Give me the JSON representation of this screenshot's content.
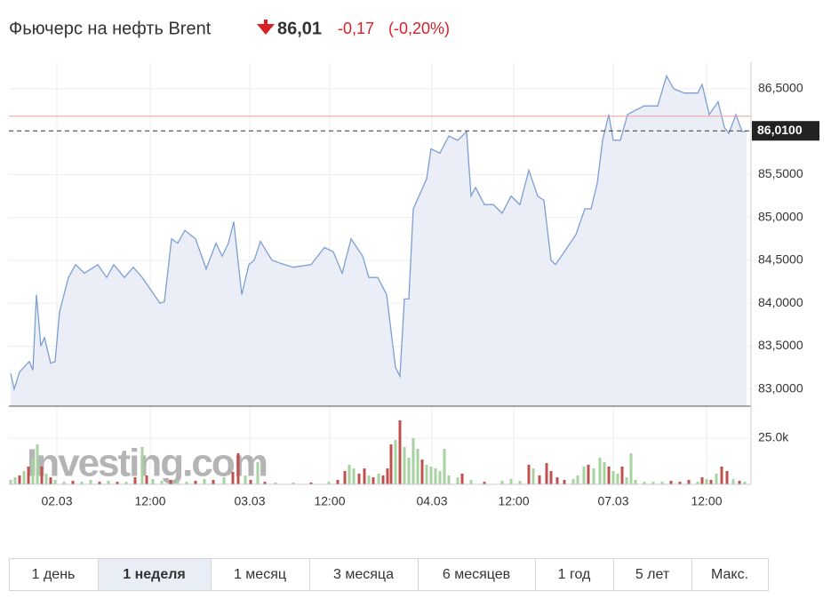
{
  "header": {
    "title": "Фьючерс на нефть Brent",
    "price": "86,01",
    "change": "-0,17",
    "change_pct": "(-0,20%)"
  },
  "chart_data": [
    {
      "type": "area",
      "color": "#7c9fd3",
      "fill": "#e9ecf6",
      "x": [
        0,
        0.4,
        1,
        2.1,
        2.5,
        2.9,
        3.4,
        3.8,
        4.5,
        5,
        5.5,
        6.5,
        7.3,
        8.3,
        9.8,
        10.8,
        11.6,
        12.8,
        13.8,
        14.8,
        16.8,
        17.3,
        18.1,
        18.8,
        19.6,
        20.8,
        22,
        23.1,
        23.8,
        24.5,
        25.1,
        26,
        26.8,
        27.4,
        28.1,
        29.4,
        30.8,
        31.8,
        33.8,
        35.3,
        36.3,
        37.3,
        38.3,
        39.6,
        40.3,
        41.3,
        42.3,
        43.3,
        43.8,
        44.3,
        44.8,
        45.3,
        46.8,
        47.3,
        48.3,
        49.3,
        50.3,
        51.3,
        51.8,
        52.3,
        53.3,
        54.3,
        55.3,
        56.3,
        57.3,
        58.3,
        59.3,
        60,
        60.8,
        61.3,
        62.3,
        63.6,
        64.6,
        65.3,
        66,
        66.6,
        67.3,
        67.8,
        68.6,
        69.4,
        70.3,
        71.3,
        72.8,
        73.8,
        74.6,
        75.8,
        77.3,
        77.8,
        78.6,
        79.6,
        80.3,
        80.8,
        81.6,
        82.3,
        82.8
      ],
      "values": [
        83.18,
        83.0,
        83.2,
        83.32,
        83.22,
        84.1,
        83.5,
        83.6,
        83.3,
        83.32,
        83.9,
        84.3,
        84.45,
        84.35,
        84.45,
        84.3,
        84.45,
        84.3,
        84.42,
        84.3,
        84.0,
        84.02,
        84.75,
        84.7,
        84.85,
        84.75,
        84.4,
        84.7,
        84.55,
        84.7,
        84.95,
        84.1,
        84.45,
        84.5,
        84.72,
        84.5,
        84.45,
        84.42,
        84.45,
        84.65,
        84.6,
        84.35,
        84.75,
        84.55,
        84.3,
        84.3,
        84.1,
        83.25,
        83.15,
        84.05,
        84.05,
        85.1,
        85.45,
        85.8,
        85.75,
        85.95,
        85.9,
        86.0,
        85.25,
        85.35,
        85.15,
        85.15,
        85.05,
        85.25,
        85.15,
        85.55,
        85.25,
        85.2,
        84.5,
        84.45,
        84.6,
        84.8,
        85.1,
        85.1,
        85.4,
        85.9,
        86.2,
        85.9,
        85.9,
        86.2,
        86.25,
        86.3,
        86.3,
        86.65,
        86.5,
        86.45,
        86.45,
        86.55,
        86.2,
        86.35,
        86.05,
        85.98,
        86.2,
        86.0,
        86.01
      ],
      "xlim": [
        -0.2,
        83.3
      ],
      "ylim": [
        82.8,
        86.81
      ],
      "xticks": [
        {
          "value": 5.2,
          "label": "02.03"
        },
        {
          "value": 15.7,
          "label": "12:00"
        },
        {
          "value": 26.9,
          "label": "03.03"
        },
        {
          "value": 35.9,
          "label": "12:00"
        },
        {
          "value": 47.4,
          "label": "04.03"
        },
        {
          "value": 56.6,
          "label": "12:00"
        },
        {
          "value": 67.8,
          "label": "07.03"
        },
        {
          "value": 78.3,
          "label": "12:00"
        }
      ],
      "yticks": [
        {
          "value": 83,
          "label": "83,0000"
        },
        {
          "value": 83.5,
          "label": "83,5000"
        },
        {
          "value": 84,
          "label": "84,0000"
        },
        {
          "value": 84.5,
          "label": "84,5000"
        },
        {
          "value": 85,
          "label": "85,0000"
        },
        {
          "value": 85.5,
          "label": "85,5000"
        },
        {
          "value": 86.5,
          "label": "86,5000"
        }
      ],
      "last_price": {
        "value": 86.01,
        "label": "86,0100"
      },
      "prev_close_line": 86.18,
      "grid": true
    },
    {
      "type": "bar",
      "watermark": "Investing.com",
      "up_color": "#a6d3a0",
      "down_color": "#c0504d",
      "x": [
        0,
        0.5,
        1,
        1.5,
        2,
        2.5,
        3,
        3.5,
        4,
        4.5,
        5,
        6,
        7,
        8,
        9,
        10,
        11,
        12,
        13,
        14,
        14.8,
        15.3,
        16,
        17,
        18,
        18.8,
        19.8,
        20.8,
        21.8,
        22.8,
        24,
        25,
        25.6,
        26.4,
        27,
        27.8,
        28.6,
        29.8,
        31.8,
        33.8,
        35.8,
        36.8,
        37.6,
        38.1,
        38.6,
        39.2,
        39.8,
        40.3,
        40.8,
        41.4,
        41.9,
        42.4,
        42.8,
        43.3,
        43.8,
        44.3,
        44.8,
        45.3,
        45.8,
        46.3,
        46.8,
        47.3,
        47.8,
        48.3,
        48.8,
        49.3,
        50.3,
        50.8,
        51.8,
        53.3,
        55.3,
        56.3,
        57.3,
        58.3,
        58.8,
        59.5,
        60.3,
        60.8,
        61.5,
        62.3,
        63.3,
        63.8,
        64.5,
        65,
        65.6,
        66.3,
        66.8,
        67.3,
        67.8,
        68.3,
        68.8,
        69.3,
        69.8,
        70.3,
        71.3,
        72.3,
        73.3,
        74.3,
        75.3,
        76.3,
        77.3,
        77.8,
        78.3,
        78.8,
        79.4,
        80,
        80.6,
        81.3,
        82,
        82.6
      ],
      "values": [
        2400,
        3800,
        4800,
        7200,
        9600,
        14400,
        21600,
        9600,
        5800,
        3800,
        2400,
        1400,
        1900,
        1400,
        2400,
        1400,
        1900,
        1400,
        1400,
        3800,
        20200,
        4800,
        2900,
        1900,
        2400,
        1900,
        1400,
        1900,
        2900,
        2400,
        3800,
        6700,
        16800,
        4800,
        2400,
        12000,
        1400,
        1000,
        1000,
        1000,
        1400,
        2400,
        7200,
        10600,
        8600,
        5800,
        8600,
        4800,
        3800,
        5800,
        4800,
        8600,
        21600,
        24000,
        34600,
        20200,
        14400,
        25000,
        19200,
        13400,
        10600,
        9600,
        8600,
        7200,
        19200,
        4800,
        3800,
        5800,
        2400,
        1400,
        1900,
        2900,
        1900,
        10600,
        8600,
        4800,
        11500,
        7200,
        3800,
        2400,
        2900,
        4800,
        9600,
        10600,
        8600,
        14400,
        12000,
        9600,
        7200,
        5800,
        9600,
        3800,
        16800,
        2400,
        1400,
        1400,
        1400,
        1900,
        1400,
        2400,
        1400,
        3800,
        2900,
        2400,
        5800,
        9600,
        7200,
        2900,
        1900,
        1400
      ],
      "colors": [
        "#a6d3a0",
        "#a6d3a0",
        "#c0504d",
        "#a6d3a0",
        "#c0504d",
        "#a6d3a0",
        "#a6d3a0",
        "#c0504d",
        "#a6d3a0",
        "#c0504d",
        "#a6d3a0",
        "#a6d3a0",
        "#c0504d",
        "#a6d3a0",
        "#a6d3a0",
        "#c0504d",
        "#a6d3a0",
        "#c0504d",
        "#a6d3a0",
        "#c0504d",
        "#a6d3a0",
        "#c0504d",
        "#a6d3a0",
        "#a6d3a0",
        "#c0504d",
        "#a6d3a0",
        "#a6d3a0",
        "#c0504d",
        "#a6d3a0",
        "#c0504d",
        "#a6d3a0",
        "#c0504d",
        "#c0504d",
        "#a6d3a0",
        "#c0504d",
        "#a6d3a0",
        "#c0504d",
        "#a6d3a0",
        "#a6d3a0",
        "#c0504d",
        "#a6d3a0",
        "#c0504d",
        "#c0504d",
        "#a6d3a0",
        "#a6d3a0",
        "#c0504d",
        "#c0504d",
        "#a6d3a0",
        "#c0504d",
        "#a6d3a0",
        "#c0504d",
        "#c0504d",
        "#c0504d",
        "#a6d3a0",
        "#c0504d",
        "#a6d3a0",
        "#a6d3a0",
        "#a6d3a0",
        "#a6d3a0",
        "#c0504d",
        "#a6d3a0",
        "#a6d3a0",
        "#a6d3a0",
        "#a6d3a0",
        "#a6d3a0",
        "#a6d3a0",
        "#a6d3a0",
        "#c0504d",
        "#a6d3a0",
        "#c0504d",
        "#a6d3a0",
        "#a6d3a0",
        "#a6d3a0",
        "#c0504d",
        "#a6d3a0",
        "#c0504d",
        "#c0504d",
        "#c0504d",
        "#c0504d",
        "#c0504d",
        "#a6d3a0",
        "#a6d3a0",
        "#a6d3a0",
        "#c0504d",
        "#a6d3a0",
        "#a6d3a0",
        "#a6d3a0",
        "#c0504d",
        "#a6d3a0",
        "#a6d3a0",
        "#c0504d",
        "#a6d3a0",
        "#a6d3a0",
        "#a6d3a0",
        "#a6d3a0",
        "#a6d3a0",
        "#a6d3a0",
        "#c0504d",
        "#c0504d",
        "#c0504d",
        "#a6d3a0",
        "#c0504d",
        "#a6d3a0",
        "#c0504d",
        "#a6d3a0",
        "#c0504d",
        "#c0504d",
        "#a6d3a0",
        "#c0504d",
        "#a6d3a0"
      ],
      "xlim": [
        -0.2,
        83.3
      ],
      "ylim": [
        0,
        40800
      ],
      "yticks": [
        {
          "value": 25000,
          "label": "25.0k"
        }
      ]
    }
  ],
  "periods": {
    "buttons": [
      "1 день",
      "1 неделя",
      "1 месяц",
      "3 месяца",
      "6 месяцев",
      "1 год",
      "5 лет",
      "Макс."
    ],
    "active": 1
  }
}
